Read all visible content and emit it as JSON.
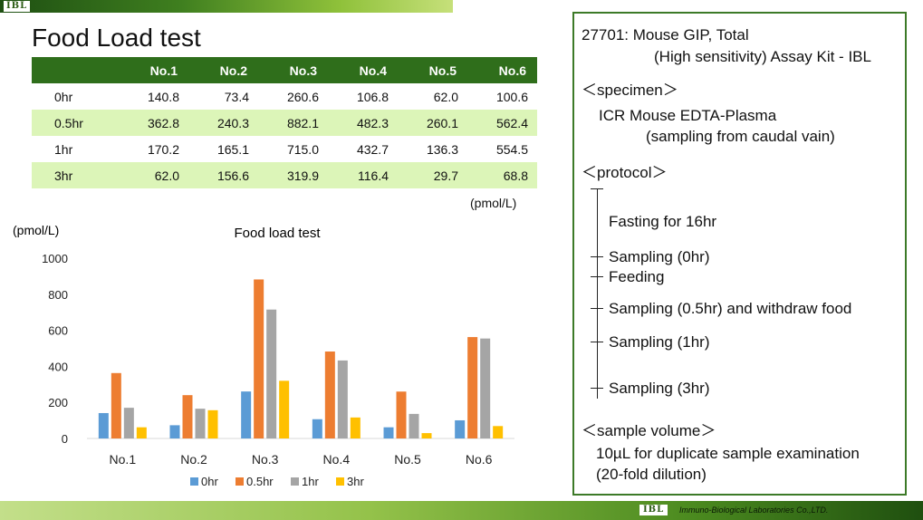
{
  "header": {
    "logo_text": "IBL"
  },
  "footer": {
    "logo_text": "IBL",
    "company": "Immuno-Biological Laboratories Co.,LTD."
  },
  "page_title": "Food Load test",
  "table": {
    "columns": [
      "No.1",
      "No.2",
      "No.3",
      "No.4",
      "No.5",
      "No.6"
    ],
    "rows": [
      {
        "label": "0hr",
        "values": [
          "140.8",
          "73.4",
          "260.6",
          "106.8",
          "62.0",
          "100.6"
        ]
      },
      {
        "label": "0.5hr",
        "values": [
          "362.8",
          "240.3",
          "882.1",
          "482.3",
          "260.1",
          "562.4"
        ]
      },
      {
        "label": "1hr",
        "values": [
          "170.2",
          "165.1",
          "715.0",
          "432.7",
          "136.3",
          "554.5"
        ]
      },
      {
        "label": "3hr",
        "values": [
          "62.0",
          "156.6",
          "319.9",
          "116.4",
          "29.7",
          "68.8"
        ]
      }
    ],
    "unit": "(pmol/L)"
  },
  "chart_data": {
    "type": "bar",
    "title": "Food load test",
    "ylabel": "(pmol/L)",
    "xlabel": "",
    "categories": [
      "No.1",
      "No.2",
      "No.3",
      "No.4",
      "No.5",
      "No.6"
    ],
    "ylim": [
      0,
      1000
    ],
    "yticks": [
      "0",
      "200",
      "400",
      "600",
      "800",
      "1000"
    ],
    "grid": false,
    "legend": "bottom",
    "series": [
      {
        "name": "0hr",
        "color": "#5b9bd5",
        "values": [
          140.8,
          73.4,
          260.6,
          106.8,
          62.0,
          100.6
        ]
      },
      {
        "name": "0.5hr",
        "color": "#ed7d31",
        "values": [
          362.8,
          240.3,
          882.1,
          482.3,
          260.1,
          562.4
        ]
      },
      {
        "name": "1hr",
        "color": "#a5a5a5",
        "values": [
          170.2,
          165.1,
          715.0,
          432.7,
          136.3,
          554.5
        ]
      },
      {
        "name": "3hr",
        "color": "#ffc000",
        "values": [
          62.0,
          156.6,
          319.9,
          116.4,
          29.7,
          68.8
        ]
      }
    ]
  },
  "panel": {
    "kit_title": "27701: Mouse GIP, Total",
    "kit_subtitle": "(High sensitivity) Assay Kit - IBL",
    "specimen_heading": "＜specimen＞",
    "specimen_line1": "ICR Mouse EDTA-Plasma",
    "specimen_line2": "(sampling from caudal vain)",
    "protocol_heading": "＜protocol＞",
    "steps": [
      "Fasting for 16hr",
      "Sampling (0hr)",
      "Feeding",
      "Sampling (0.5hr) and withdraw food",
      "Sampling (1hr)",
      "Sampling (3hr)"
    ],
    "volume_heading": "＜sample volume＞",
    "volume_line1": "10µL for duplicate sample examination",
    "volume_line2": "(20-fold dilution)"
  }
}
